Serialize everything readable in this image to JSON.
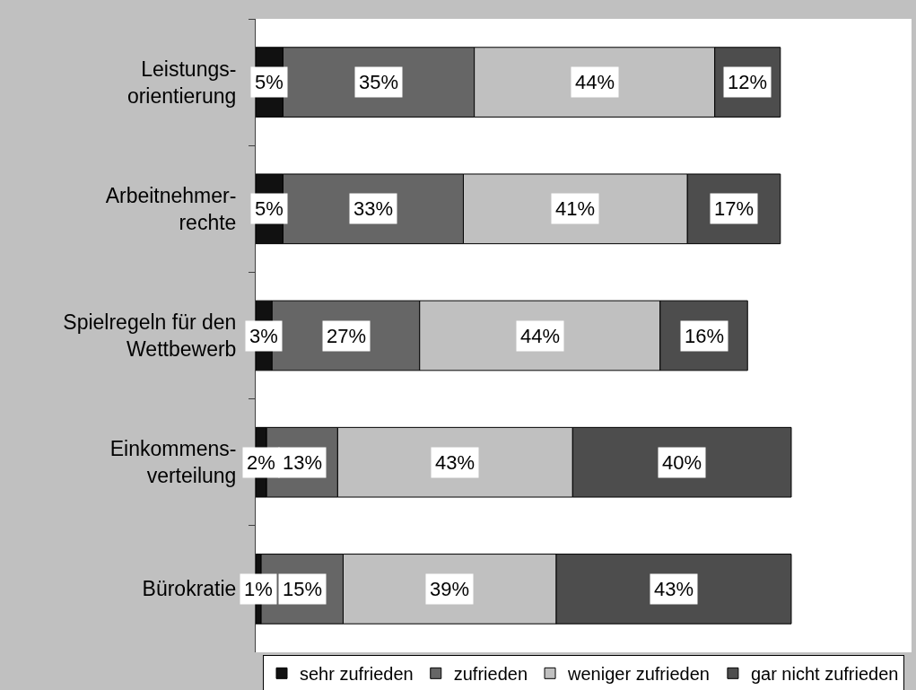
{
  "chart_data": {
    "type": "bar",
    "orientation": "horizontal",
    "stacked": true,
    "categories": [
      "Leistungs-\norientierung",
      "Arbeitnehmer-\nrechte",
      "Spielregeln für den\nWettbewerb",
      "Einkommens-\nverteilung",
      "Bürokratie"
    ],
    "series": [
      {
        "name": "sehr zufrieden",
        "color": "#111111",
        "values": [
          5,
          5,
          3,
          2,
          1
        ],
        "value_labels": [
          "5%",
          "5%",
          "3%",
          "2%",
          "1%"
        ]
      },
      {
        "name": "zufrieden",
        "color": "#666666",
        "values": [
          35,
          33,
          27,
          13,
          15
        ],
        "value_labels": [
          "35%",
          "33%",
          "27%",
          "13%",
          "15%"
        ]
      },
      {
        "name": "weniger zufrieden",
        "color": "#c0c0c0",
        "values": [
          44,
          41,
          44,
          43,
          39
        ],
        "value_labels": [
          "44%",
          "41%",
          "44%",
          "43%",
          "39%"
        ]
      },
      {
        "name": "gar nicht zufrieden",
        "color": "#4d4d4d",
        "values": [
          12,
          17,
          16,
          40,
          43
        ],
        "value_labels": [
          "12%",
          "17%",
          "16%",
          "40%",
          "43%"
        ]
      }
    ],
    "xlim": [
      0,
      120
    ],
    "tick_labels": "y",
    "legend": "bottom"
  }
}
